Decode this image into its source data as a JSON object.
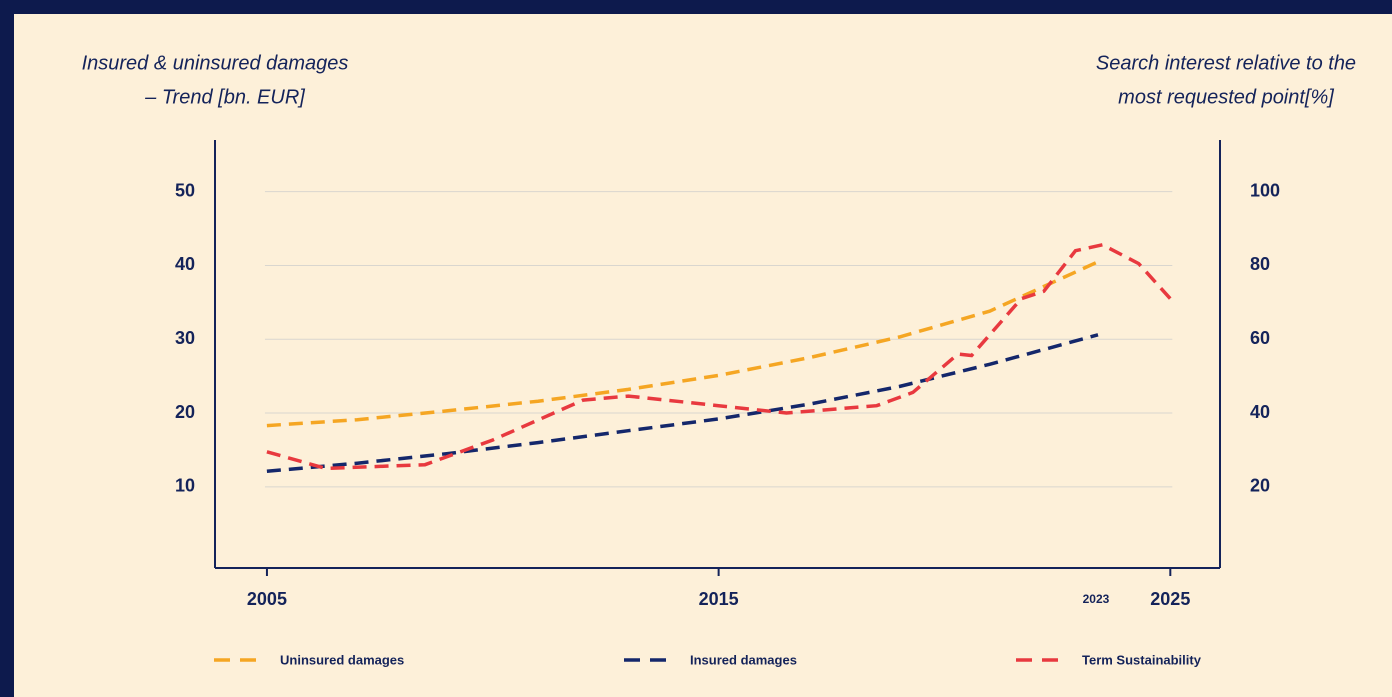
{
  "chart_data": {
    "type": "line",
    "ylabel": [
      "Insured & uninsured damages",
      "– Trend [bn. EUR]"
    ],
    "y2label": [
      "Search interest relative to the",
      "most requested point[%]"
    ],
    "xlim": [
      2003.85,
      2026.1
    ],
    "xticks": [
      2005,
      2015,
      2025
    ],
    "ylim": [
      -1,
      57
    ],
    "yticks": [
      10,
      20,
      30,
      40,
      50
    ],
    "y2lim": [
      -2,
      114
    ],
    "y2ticks": [
      20,
      40,
      60,
      80,
      100
    ],
    "grid": true,
    "annotations": [
      {
        "text": "2023",
        "x": 2023
      }
    ],
    "series": [
      {
        "name": "Uninsured damages",
        "color": "#f5a623",
        "x": [
          2005,
          2007,
          2009,
          2011,
          2013,
          2015,
          2017,
          2019,
          2021,
          2023.4
        ],
        "values": [
          18.3,
          19.1,
          20.3,
          21.6,
          23.2,
          25.1,
          27.5,
          30.3,
          33.8,
          40.5
        ]
      },
      {
        "name": "Insured damages",
        "color": "#14276b",
        "x": [
          2005,
          2007,
          2009,
          2011,
          2013,
          2015,
          2017,
          2019,
          2021,
          2023.4
        ],
        "values": [
          12.1,
          13.2,
          14.5,
          16.0,
          17.6,
          19.2,
          21.2,
          23.6,
          26.6,
          30.6
        ]
      },
      {
        "name": "Term Sustainability",
        "color": "#e8393f",
        "axis": "y2",
        "x": [
          2005,
          2006.3,
          2008.5,
          2010,
          2012,
          2013,
          2015,
          2016.5,
          2018.5,
          2019.3,
          2020.3,
          2020.6,
          2021.7,
          2022.2,
          2022.9,
          2023.5,
          2024.3,
          2025
        ],
        "values": [
          29.5,
          25,
          26,
          32.7,
          43.5,
          44.6,
          42,
          40,
          42,
          45.6,
          56,
          55.6,
          71,
          73,
          84,
          85.6,
          80.5,
          71
        ]
      }
    ]
  }
}
